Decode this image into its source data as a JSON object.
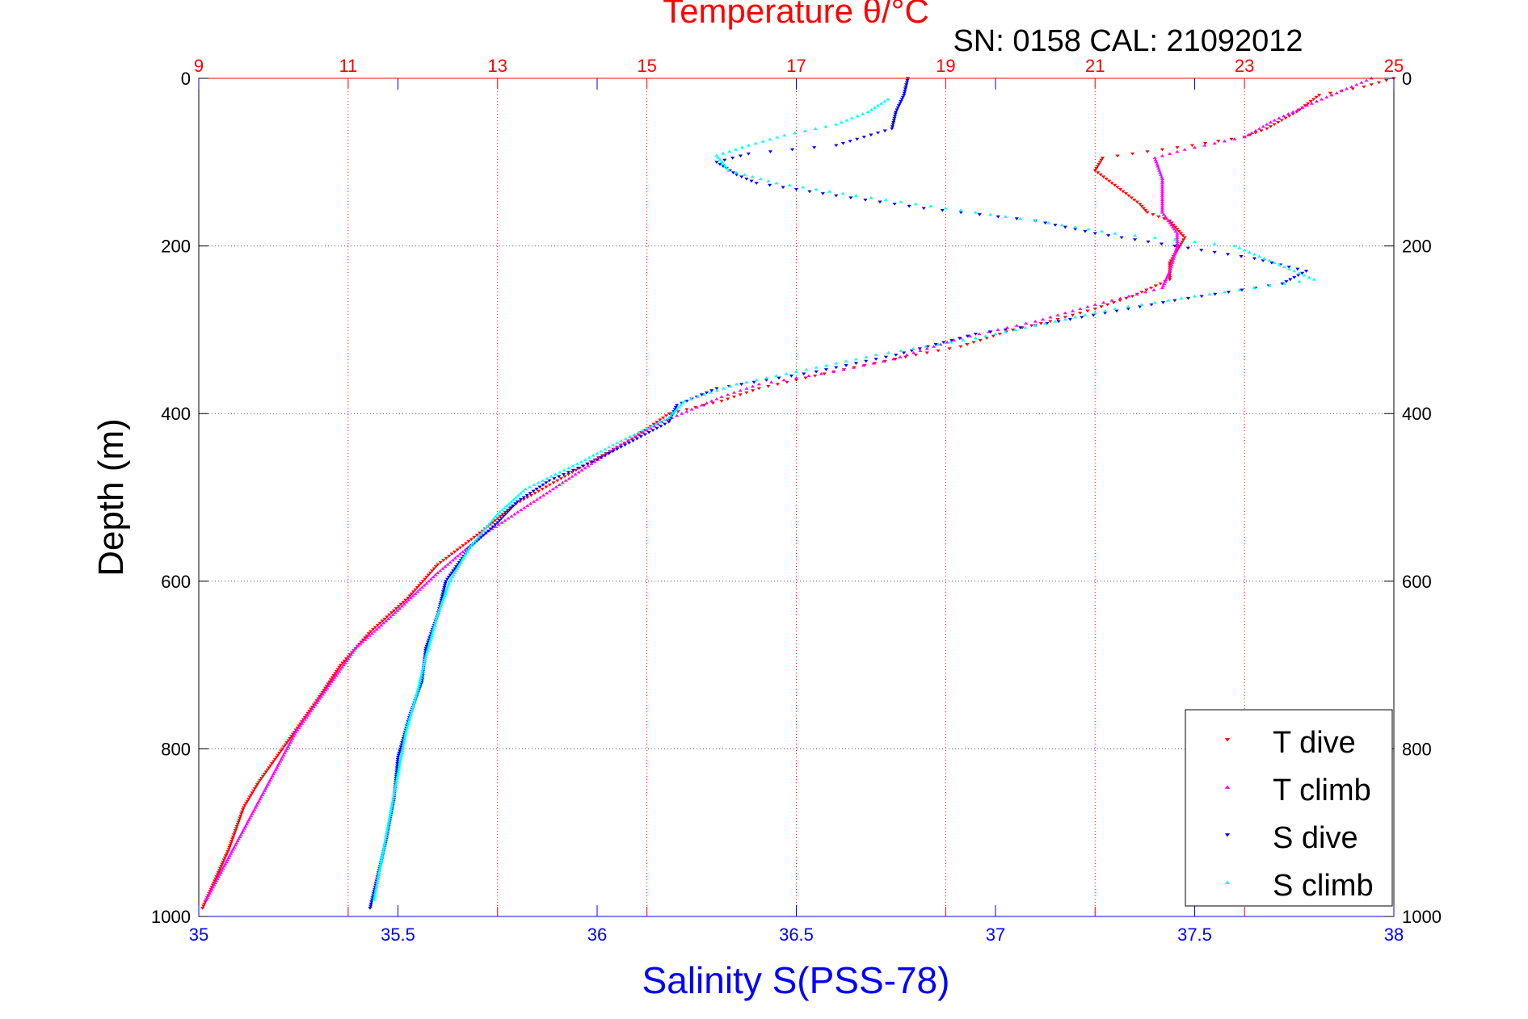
{
  "chart_data": {
    "type": "scatter",
    "title": "Temperature θ/°C",
    "subtitle": "SN: 0158  CAL: 21092012",
    "ylabel": "Depth (m)",
    "xlabel_bottom": "Salinity S(PSS-78)",
    "ylim": [
      0,
      1000
    ],
    "y_reversed": true,
    "x_bottom_lim": [
      35,
      38
    ],
    "x_top_lim": [
      9,
      25
    ],
    "y_ticks": [
      "0",
      "200",
      "400",
      "600",
      "800",
      "1000"
    ],
    "x_bottom_ticks": [
      "35",
      "35.5",
      "36",
      "36.5",
      "37",
      "37.5",
      "38"
    ],
    "x_top_ticks": [
      "9",
      "11",
      "13",
      "15",
      "17",
      "19",
      "21",
      "23",
      "25"
    ],
    "grid": true,
    "legend_position": "bottom-right",
    "colors": {
      "temperature_axis": "#ff0000",
      "salinity_axis": "#0000ff",
      "t_dive": "#ff0000",
      "t_climb": "#ff00ff",
      "s_dive": "#0000ff",
      "s_climb": "#00ffff"
    },
    "series": [
      {
        "name": "T dive",
        "axis": "temperature",
        "marker": "triangle-down",
        "points": [
          [
            25.0,
            0
          ],
          [
            24.6,
            10
          ],
          [
            24.0,
            20
          ],
          [
            23.7,
            40
          ],
          [
            23.3,
            60
          ],
          [
            23.0,
            70
          ],
          [
            22.3,
            80
          ],
          [
            21.1,
            95
          ],
          [
            21.0,
            110
          ],
          [
            21.3,
            130
          ],
          [
            21.6,
            150
          ],
          [
            21.7,
            160
          ],
          [
            22.0,
            170
          ],
          [
            22.2,
            190
          ],
          [
            22.0,
            220
          ],
          [
            22.0,
            240
          ],
          [
            21.5,
            260
          ],
          [
            21.0,
            275
          ],
          [
            20.4,
            290
          ],
          [
            19.9,
            300
          ],
          [
            19.2,
            320
          ],
          [
            18.6,
            330
          ],
          [
            17.5,
            350
          ],
          [
            16.5,
            370
          ],
          [
            16.0,
            385
          ],
          [
            15.3,
            400
          ],
          [
            14.8,
            430
          ],
          [
            14.2,
            460
          ],
          [
            13.6,
            490
          ],
          [
            13.2,
            510
          ],
          [
            12.8,
            540
          ],
          [
            12.2,
            580
          ],
          [
            11.8,
            620
          ],
          [
            11.3,
            660
          ],
          [
            10.9,
            700
          ],
          [
            10.6,
            740
          ],
          [
            10.2,
            790
          ],
          [
            9.8,
            840
          ],
          [
            9.6,
            870
          ],
          [
            9.4,
            920
          ],
          [
            9.2,
            960
          ],
          [
            9.05,
            990
          ]
        ]
      },
      {
        "name": "T climb",
        "axis": "temperature",
        "marker": "triangle-up",
        "points": [
          [
            24.7,
            0
          ],
          [
            24.3,
            15
          ],
          [
            23.9,
            30
          ],
          [
            23.4,
            50
          ],
          [
            23.0,
            70
          ],
          [
            22.2,
            85
          ],
          [
            21.8,
            95
          ],
          [
            21.9,
            120
          ],
          [
            21.9,
            160
          ],
          [
            22.1,
            185
          ],
          [
            22.1,
            200
          ],
          [
            22.0,
            230
          ],
          [
            21.9,
            250
          ],
          [
            21.0,
            270
          ],
          [
            20.2,
            290
          ],
          [
            19.2,
            310
          ],
          [
            18.3,
            335
          ],
          [
            17.5,
            350
          ],
          [
            16.5,
            365
          ],
          [
            16.0,
            380
          ],
          [
            15.2,
            410
          ],
          [
            14.6,
            440
          ],
          [
            14.0,
            475
          ],
          [
            13.4,
            510
          ],
          [
            12.8,
            545
          ],
          [
            12.2,
            590
          ],
          [
            11.6,
            640
          ],
          [
            11.1,
            680
          ],
          [
            10.7,
            730
          ],
          [
            10.3,
            780
          ],
          [
            10.0,
            830
          ],
          [
            9.7,
            880
          ],
          [
            9.4,
            930
          ],
          [
            9.1,
            980
          ]
        ]
      },
      {
        "name": "S dive",
        "axis": "salinity",
        "marker": "triangle-down",
        "points": [
          [
            36.78,
            0
          ],
          [
            36.77,
            20
          ],
          [
            36.75,
            40
          ],
          [
            36.74,
            60
          ],
          [
            36.6,
            80
          ],
          [
            36.38,
            90
          ],
          [
            36.3,
            100
          ],
          [
            36.35,
            115
          ],
          [
            36.4,
            125
          ],
          [
            36.6,
            140
          ],
          [
            36.82,
            155
          ],
          [
            37.1,
            170
          ],
          [
            37.25,
            185
          ],
          [
            37.45,
            200
          ],
          [
            37.65,
            215
          ],
          [
            37.78,
            230
          ],
          [
            37.72,
            245
          ],
          [
            37.45,
            265
          ],
          [
            37.1,
            295
          ],
          [
            36.95,
            305
          ],
          [
            36.75,
            330
          ],
          [
            36.55,
            350
          ],
          [
            36.3,
            370
          ],
          [
            36.2,
            390
          ],
          [
            36.18,
            410
          ],
          [
            36.1,
            430
          ],
          [
            36.0,
            455
          ],
          [
            35.88,
            480
          ],
          [
            35.8,
            505
          ],
          [
            35.75,
            530
          ],
          [
            35.68,
            560
          ],
          [
            35.62,
            600
          ],
          [
            35.6,
            640
          ],
          [
            35.57,
            680
          ],
          [
            35.56,
            720
          ],
          [
            35.53,
            760
          ],
          [
            35.5,
            810
          ],
          [
            35.49,
            860
          ],
          [
            35.47,
            910
          ],
          [
            35.45,
            950
          ],
          [
            35.43,
            990
          ]
        ]
      },
      {
        "name": "S climb",
        "axis": "salinity",
        "marker": "triangle-up",
        "points": [
          [
            36.73,
            25
          ],
          [
            36.68,
            40
          ],
          [
            36.6,
            55
          ],
          [
            36.47,
            68
          ],
          [
            36.38,
            80
          ],
          [
            36.3,
            92
          ],
          [
            36.33,
            110
          ],
          [
            36.45,
            125
          ],
          [
            36.65,
            140
          ],
          [
            36.95,
            160
          ],
          [
            37.1,
            170
          ],
          [
            37.3,
            185
          ],
          [
            37.6,
            200
          ],
          [
            37.8,
            240
          ],
          [
            37.5,
            260
          ],
          [
            37.3,
            275
          ],
          [
            37.1,
            295
          ],
          [
            36.95,
            310
          ],
          [
            36.7,
            330
          ],
          [
            36.5,
            350
          ],
          [
            36.35,
            365
          ],
          [
            36.22,
            385
          ],
          [
            36.18,
            405
          ],
          [
            36.05,
            435
          ],
          [
            35.95,
            460
          ],
          [
            35.82,
            490
          ],
          [
            35.75,
            520
          ],
          [
            35.68,
            560
          ],
          [
            35.63,
            600
          ],
          [
            35.6,
            640
          ],
          [
            35.57,
            690
          ],
          [
            35.55,
            730
          ],
          [
            35.52,
            780
          ],
          [
            35.5,
            830
          ],
          [
            35.48,
            880
          ],
          [
            35.46,
            930
          ],
          [
            35.44,
            980
          ]
        ]
      }
    ]
  }
}
